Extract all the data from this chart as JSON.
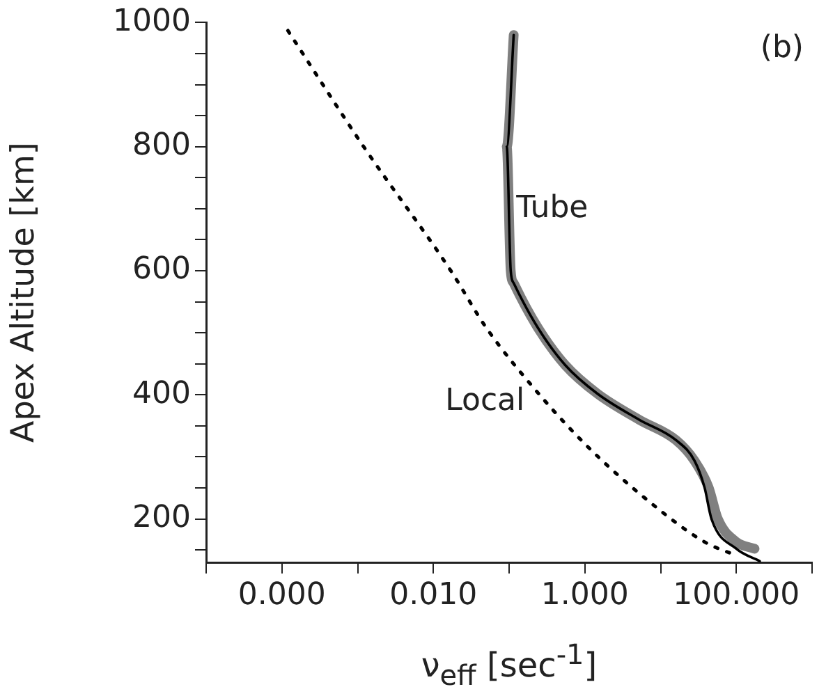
{
  "chart_data": {
    "type": "line",
    "xlabel": "ν$_{eff}$ [sec$^{-1}$]",
    "ylabel": "Apex Altitude [km]",
    "annotations": [
      "(b)"
    ],
    "log": "x",
    "xlim": [
      1e-05,
      1000
    ],
    "xticks": [
      {
        "value": 1e-05,
        "label": null
      },
      {
        "value": 0.0001,
        "label": "0.000"
      },
      {
        "value": 0.001,
        "label": null
      },
      {
        "value": 0.01,
        "label": "0.010"
      },
      {
        "value": 0.1,
        "label": null
      },
      {
        "value": 1,
        "label": "1.000"
      },
      {
        "value": 10,
        "label": null
      },
      {
        "value": 100,
        "label": "100.000"
      },
      {
        "value": 1000,
        "label": null
      }
    ],
    "ylim": [
      130,
      1000
    ],
    "yticks": [
      {
        "value": 150,
        "label": null
      },
      200,
      {
        "value": 250,
        "label": null
      },
      {
        "value": 300,
        "label": null
      },
      {
        "value": 350,
        "label": null
      },
      400,
      {
        "value": 450,
        "label": null
      },
      {
        "value": 500,
        "label": null
      },
      {
        "value": 550,
        "label": null
      },
      600,
      {
        "value": 650,
        "label": null
      },
      {
        "value": 700,
        "label": null
      },
      {
        "value": 750,
        "label": null
      },
      800,
      {
        "value": 850,
        "label": null
      },
      {
        "value": 900,
        "label": null
      },
      {
        "value": 950,
        "label": null
      },
      1000
    ],
    "legend": false,
    "marker": "none",
    "series": [
      {
        "name": "Tube",
        "color": "#808080",
        "x": [
          0.115,
          0.093,
          0.105,
          0.115,
          0.24,
          0.55,
          1.46,
          5.2,
          16,
          28,
          43,
          57,
          100,
          174
        ],
        "values": [
          980,
          800,
          600,
          580,
          508,
          448,
          402,
          360,
          327,
          294,
          251,
          200,
          163,
          152
        ]
      },
      {
        "color": "#000000",
        "x": [
          0.115,
          0.093,
          0.105,
          0.115,
          0.24,
          0.55,
          1.46,
          5.2,
          16,
          28,
          38,
          47,
          100,
          204
        ],
        "values": [
          980,
          800,
          600,
          580,
          508,
          448,
          402,
          360,
          327,
          294,
          251,
          200,
          152,
          132
        ]
      },
      {
        "name": "Local",
        "color": "#000000",
        "line_style": "dotted",
        "x": [
          0.00012,
          0.0012,
          0.017,
          0.05,
          0.245,
          1.1,
          6.9,
          38,
          100
        ],
        "values": [
          987,
          800,
          600,
          508,
          402,
          316,
          229,
          163,
          141
        ]
      }
    ]
  }
}
